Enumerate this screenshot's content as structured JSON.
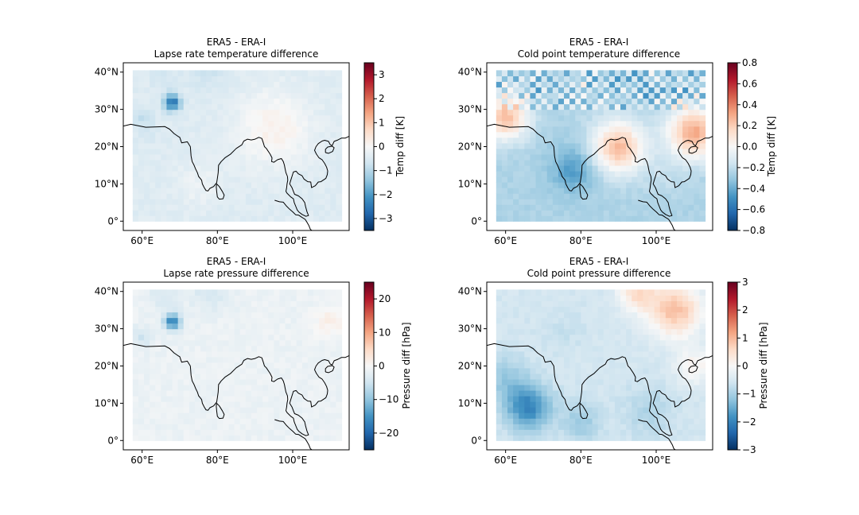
{
  "figure": {
    "background": "#ffffff",
    "map_extent": {
      "lon_min": 55,
      "lon_max": 115,
      "lat_min": -2.5,
      "lat_max": 42.5
    },
    "data_extent": {
      "lon_min": 57.5,
      "lon_max": 112.5,
      "lat_min": 0,
      "lat_max": 40
    },
    "x_ticks": [
      "60°E",
      "80°E",
      "100°E"
    ],
    "y_ticks": [
      "0°",
      "10°N",
      "20°N",
      "30°N",
      "40°N"
    ],
    "colormap": "RdBu_r",
    "colormap_stops": [
      "#053061",
      "#2166ac",
      "#4393c3",
      "#92c5de",
      "#d1e5f0",
      "#f7f7f7",
      "#fddbc7",
      "#f4a582",
      "#d6604d",
      "#b2182b",
      "#67001f"
    ]
  },
  "chart_data": [
    {
      "type": "heatmap",
      "title": "ERA5 - ERA-I",
      "subtitle": "Lapse rate temperature difference",
      "colorbar_label": "Temp diff [K]",
      "vmin": -3.5,
      "vmax": 3.5,
      "colorbar_ticks": [
        "-3",
        "-2",
        "-1",
        "0",
        "1",
        "2",
        "3"
      ],
      "colorbar_tick_values": [
        -3,
        -2,
        -1,
        0,
        1,
        2,
        3
      ],
      "field": {
        "background": -0.45,
        "features": [
          {
            "lon": 68,
            "lat": 32,
            "r": 2.2,
            "value": -2.6
          },
          {
            "lon": 66,
            "lat": 39,
            "r": 4,
            "value": -0.6
          },
          {
            "lon": 78,
            "lat": 40,
            "r": 5,
            "value": -0.7
          },
          {
            "lon": 60,
            "lat": 28,
            "r": 2.5,
            "value": -0.9
          },
          {
            "lon": 62,
            "lat": 24,
            "r": 3,
            "value": -0.6
          },
          {
            "lon": 95,
            "lat": 25,
            "r": 10,
            "value": 0.15
          },
          {
            "lon": 75,
            "lat": 10,
            "r": 6,
            "value": -0.2
          }
        ]
      }
    },
    {
      "type": "heatmap",
      "title": "ERA5 - ERA-I",
      "subtitle": "Cold point temperature difference",
      "colorbar_label": "Temp diff [K]",
      "vmin": -0.8,
      "vmax": 0.8,
      "colorbar_ticks": [
        "-0.8",
        "-0.6",
        "-0.4",
        "-0.2",
        "0.0",
        "0.2",
        "0.4",
        "0.6",
        "0.8"
      ],
      "colorbar_tick_values": [
        -0.8,
        -0.6,
        -0.4,
        -0.2,
        0,
        0.2,
        0.4,
        0.6,
        0.8
      ],
      "field": {
        "background": -0.25,
        "checker_rows_above_lat": 30,
        "checker_amplitude": 0.25,
        "features": [
          {
            "lon": 78,
            "lat": 14,
            "r": 6,
            "value": -0.45
          },
          {
            "lon": 65,
            "lat": 8,
            "r": 9,
            "value": -0.25
          },
          {
            "lon": 60,
            "lat": 28,
            "r": 6,
            "value": 0.25
          },
          {
            "lon": 110,
            "lat": 24,
            "r": 7,
            "value": 0.3
          },
          {
            "lon": 90,
            "lat": 20,
            "r": 7,
            "value": 0.25
          },
          {
            "lon": 88,
            "lat": 32,
            "r": 7,
            "value": -0.25
          },
          {
            "lon": 80,
            "lat": 38,
            "r": 8,
            "value": -0.2
          },
          {
            "lon": 102,
            "lat": 12,
            "r": 6,
            "value": -0.2
          }
        ]
      }
    },
    {
      "type": "heatmap",
      "title": "ERA5 - ERA-I",
      "subtitle": "Lapse rate pressure difference",
      "colorbar_label": "Pressure diff [hPa]",
      "vmin": -25,
      "vmax": 25,
      "colorbar_ticks": [
        "-20",
        "-10",
        "0",
        "10",
        "20"
      ],
      "colorbar_tick_values": [
        -20,
        -10,
        0,
        10,
        20
      ],
      "field": {
        "background": -1.5,
        "features": [
          {
            "lon": 68,
            "lat": 32,
            "r": 2.2,
            "value": -17
          },
          {
            "lon": 66,
            "lat": 39,
            "r": 4,
            "value": -4
          },
          {
            "lon": 78,
            "lat": 40,
            "r": 5,
            "value": -4.5
          },
          {
            "lon": 60,
            "lat": 28,
            "r": 2.5,
            "value": -5
          },
          {
            "lon": 110,
            "lat": 32,
            "r": 4,
            "value": 1.5
          }
        ]
      }
    },
    {
      "type": "heatmap",
      "title": "ERA5 - ERA-I",
      "subtitle": "Cold point pressure difference",
      "colorbar_label": "Pressure diff [hPa]",
      "vmin": -3,
      "vmax": 3,
      "colorbar_ticks": [
        "-3",
        "-2",
        "-1",
        "0",
        "1",
        "2",
        "3"
      ],
      "colorbar_tick_values": [
        -3,
        -2,
        -1,
        0,
        1,
        2,
        3
      ],
      "field": {
        "background": -0.55,
        "features": [
          {
            "lon": 66,
            "lat": 9,
            "r": 6,
            "value": -2.0
          },
          {
            "lon": 60,
            "lat": 17,
            "r": 6,
            "value": -1.1
          },
          {
            "lon": 80,
            "lat": 5,
            "r": 5,
            "value": -1.1
          },
          {
            "lon": 105,
            "lat": 35,
            "r": 7,
            "value": 0.9
          },
          {
            "lon": 95,
            "lat": 40,
            "r": 5,
            "value": 0.5
          },
          {
            "lon": 75,
            "lat": 30,
            "r": 6,
            "value": -0.7
          },
          {
            "lon": 72,
            "lat": 38,
            "r": 5,
            "value": -0.5
          },
          {
            "lon": 98,
            "lat": 8,
            "r": 7,
            "value": -0.9
          },
          {
            "lon": 110,
            "lat": 20,
            "r": 5,
            "value": 0.1
          }
        ]
      }
    }
  ],
  "coastlines": [
    [
      [
        55,
        25.5
      ],
      [
        57,
        26
      ],
      [
        59,
        25.6
      ],
      [
        61,
        25.2
      ],
      [
        64,
        25.3
      ],
      [
        66,
        25.4
      ],
      [
        67.3,
        24.7
      ],
      [
        68.5,
        23.5
      ],
      [
        69.5,
        22.8
      ],
      [
        70,
        22.5
      ],
      [
        70.5,
        21
      ],
      [
        72,
        21.3
      ],
      [
        72.8,
        20
      ],
      [
        72.9,
        19
      ],
      [
        73,
        17.5
      ],
      [
        73.3,
        16
      ],
      [
        73.8,
        15
      ],
      [
        74.2,
        14
      ],
      [
        74.7,
        13
      ],
      [
        75,
        12
      ],
      [
        75.8,
        11
      ],
      [
        76,
        10
      ],
      [
        76.5,
        9
      ],
      [
        77,
        8.2
      ],
      [
        77.5,
        8.1
      ],
      [
        78,
        8.8
      ],
      [
        79,
        9.3
      ],
      [
        79.8,
        10.3
      ],
      [
        80,
        11.5
      ],
      [
        80.2,
        13
      ],
      [
        80.3,
        15
      ],
      [
        81,
        16
      ],
      [
        82,
        17
      ],
      [
        83.5,
        18
      ],
      [
        85,
        19.5
      ],
      [
        86.5,
        20.5
      ],
      [
        87,
        21.5
      ],
      [
        88,
        22
      ],
      [
        89,
        21.8
      ],
      [
        90,
        22
      ],
      [
        91,
        22.5
      ],
      [
        91.8,
        22.2
      ],
      [
        92.2,
        21
      ],
      [
        92.5,
        20
      ],
      [
        93,
        19.5
      ],
      [
        94,
        18
      ],
      [
        94.5,
        17
      ],
      [
        94.4,
        16
      ],
      [
        95,
        15.8
      ],
      [
        96,
        16.5
      ],
      [
        97,
        16.8
      ],
      [
        97.5,
        16
      ],
      [
        97.8,
        15
      ],
      [
        98,
        14
      ],
      [
        98.2,
        13
      ],
      [
        98.6,
        12
      ],
      [
        98.7,
        11
      ],
      [
        98.5,
        10
      ],
      [
        98.4,
        9
      ],
      [
        98.2,
        8
      ],
      [
        98.5,
        7.5
      ],
      [
        99,
        7
      ],
      [
        99.5,
        6.5
      ],
      [
        100.2,
        6
      ],
      [
        100.4,
        5
      ],
      [
        100.8,
        4
      ],
      [
        101.2,
        3
      ],
      [
        101.6,
        2.5
      ],
      [
        102.5,
        1.8
      ],
      [
        103.5,
        1.3
      ],
      [
        104.2,
        1.5
      ],
      [
        103.8,
        2.5
      ],
      [
        103.4,
        4
      ],
      [
        103.2,
        5
      ],
      [
        102.5,
        6
      ],
      [
        101.5,
        6.8
      ],
      [
        100.5,
        7.2
      ],
      [
        100.2,
        8
      ],
      [
        99.8,
        9
      ],
      [
        99.2,
        10
      ],
      [
        99.5,
        11
      ],
      [
        99.8,
        12
      ],
      [
        100.2,
        13.2
      ],
      [
        100.9,
        13.4
      ],
      [
        101.5,
        12.7
      ],
      [
        102.5,
        12.2
      ],
      [
        103,
        11.3
      ],
      [
        104,
        10.6
      ],
      [
        104.8,
        10.5
      ],
      [
        105,
        9
      ],
      [
        106,
        9.5
      ],
      [
        106.8,
        10.5
      ],
      [
        107.5,
        10.6
      ],
      [
        108.8,
        11.5
      ],
      [
        109.2,
        12.5
      ],
      [
        109.3,
        13.5
      ],
      [
        109,
        14.5
      ],
      [
        108.5,
        15.5
      ],
      [
        107.8,
        16.5
      ],
      [
        107,
        17
      ],
      [
        106.3,
        18
      ],
      [
        105.8,
        19
      ],
      [
        106.2,
        20
      ],
      [
        106.8,
        20.8
      ],
      [
        107.8,
        21.5
      ],
      [
        108.5,
        21.7
      ],
      [
        109.5,
        21.4
      ],
      [
        110,
        20.5
      ],
      [
        110.5,
        20.3
      ],
      [
        111,
        21.4
      ],
      [
        112,
        21.8
      ],
      [
        113,
        22.3
      ],
      [
        114,
        22.3
      ],
      [
        115,
        22.8
      ]
    ],
    [
      [
        79.8,
        10
      ],
      [
        80.5,
        9.3
      ],
      [
        81.3,
        8
      ],
      [
        81.8,
        7
      ],
      [
        81.5,
        6
      ],
      [
        80.5,
        5.9
      ],
      [
        80,
        6.5
      ],
      [
        79.8,
        8
      ],
      [
        79.7,
        9.2
      ],
      [
        79.8,
        10
      ]
    ],
    [
      [
        108.7,
        18.4
      ],
      [
        109.5,
        18.2
      ],
      [
        110.6,
        18.7
      ],
      [
        111,
        19.7
      ],
      [
        110.5,
        20.1
      ],
      [
        109.3,
        19.9
      ],
      [
        108.7,
        19.3
      ],
      [
        108.7,
        18.4
      ]
    ],
    [
      [
        95.2,
        5.6
      ],
      [
        96.5,
        5.2
      ],
      [
        97.5,
        5.1
      ],
      [
        98.3,
        4.1
      ],
      [
        99.2,
        3.2
      ],
      [
        100.1,
        2.4
      ],
      [
        100.8,
        1.7
      ],
      [
        101.6,
        1.6
      ],
      [
        102.5,
        1
      ],
      [
        103.3,
        0.5
      ],
      [
        103.8,
        -0.3
      ],
      [
        104.3,
        -1.2
      ],
      [
        104.7,
        -2.2
      ],
      [
        105.8,
        -3
      ]
    ]
  ]
}
